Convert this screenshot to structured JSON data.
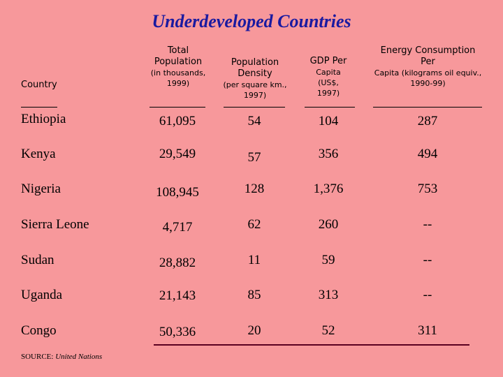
{
  "title": "Underdeveloped Countries",
  "headers": {
    "country": "Country",
    "population_main": "Total Population",
    "population_sub": "(in thousands, 1999)",
    "density_main": "Population Density",
    "density_sub": "(per square km., 1997)",
    "gdp_main": "GDP Per",
    "gdp_sub": "Capita (US$, 1997)",
    "energy_main": "Energy Consumption Per",
    "energy_sub": "Capita (kilograms oil equiv., 1990-99)"
  },
  "rows": [
    {
      "country": "Ethiopia",
      "population": "61,095",
      "density": "54",
      "gdp": "104",
      "energy": "287"
    },
    {
      "country": "Kenya",
      "population": "29,549",
      "density": "57",
      "gdp": "356",
      "energy": "494"
    },
    {
      "country": "Nigeria",
      "population": "108,945",
      "density": "128",
      "gdp": "1,376",
      "energy": "753"
    },
    {
      "country": "Sierra Leone",
      "population": "4,717",
      "density": "62",
      "gdp": "260",
      "energy": "--"
    },
    {
      "country": "Sudan",
      "population": "28,882",
      "density": "11",
      "gdp": "59",
      "energy": "--"
    },
    {
      "country": "Uganda",
      "population": "21,143",
      "density": "85",
      "gdp": "313",
      "energy": "--"
    },
    {
      "country": "Congo",
      "population": "50,336",
      "density": "20",
      "gdp": "52",
      "energy": "311"
    }
  ],
  "source": {
    "label": "SOURCE:",
    "org": "United Nations"
  },
  "colors": {
    "background": "#f7989b",
    "title": "#1a1aa0",
    "rule": "#5a0020"
  }
}
